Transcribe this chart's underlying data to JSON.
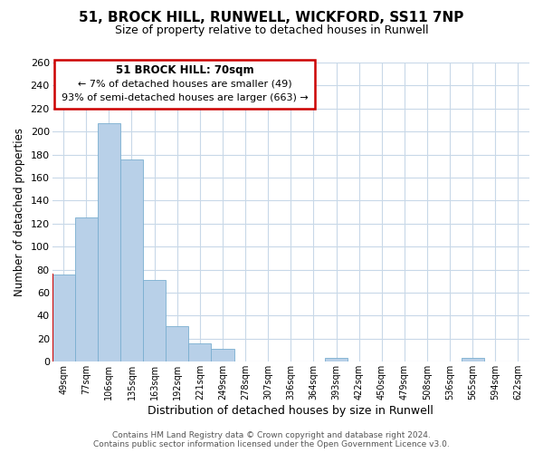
{
  "title": "51, BROCK HILL, RUNWELL, WICKFORD, SS11 7NP",
  "subtitle": "Size of property relative to detached houses in Runwell",
  "xlabel": "Distribution of detached houses by size in Runwell",
  "ylabel": "Number of detached properties",
  "bar_labels": [
    "49sqm",
    "77sqm",
    "106sqm",
    "135sqm",
    "163sqm",
    "192sqm",
    "221sqm",
    "249sqm",
    "278sqm",
    "307sqm",
    "336sqm",
    "364sqm",
    "393sqm",
    "422sqm",
    "450sqm",
    "479sqm",
    "508sqm",
    "536sqm",
    "565sqm",
    "594sqm",
    "622sqm"
  ],
  "bar_values": [
    76,
    125,
    207,
    176,
    71,
    31,
    16,
    11,
    0,
    0,
    0,
    0,
    3,
    0,
    0,
    0,
    0,
    0,
    3,
    0,
    0
  ],
  "bar_color": "#b8d0e8",
  "bar_edge_color": "#7aaed0",
  "marker_line_color": "#cc0000",
  "marker_bar_index": 0,
  "ylim": [
    0,
    260
  ],
  "yticks": [
    0,
    20,
    40,
    60,
    80,
    100,
    120,
    140,
    160,
    180,
    200,
    220,
    240,
    260
  ],
  "annotation_title": "51 BROCK HILL: 70sqm",
  "annotation_line1": "← 7% of detached houses are smaller (49)",
  "annotation_line2": "93% of semi-detached houses are larger (663) →",
  "annotation_box_color": "#ffffff",
  "annotation_box_edge": "#cc0000",
  "footer_line1": "Contains HM Land Registry data © Crown copyright and database right 2024.",
  "footer_line2": "Contains public sector information licensed under the Open Government Licence v3.0.",
  "background_color": "#ffffff",
  "grid_color": "#c8d8e8",
  "fig_width": 6.0,
  "fig_height": 5.0,
  "dpi": 100
}
